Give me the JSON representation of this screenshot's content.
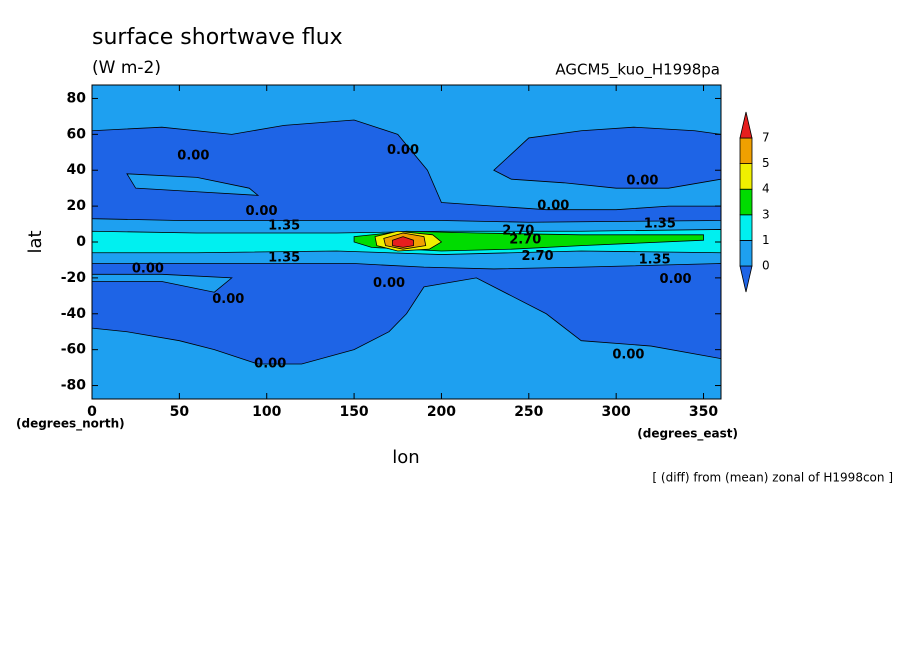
{
  "chart_data": {
    "type": "contour",
    "title": "surface shortwave flux",
    "subtitle": "(W m-2)",
    "model_label": "AGCM5_kuo_H1998pa",
    "x_label": "lon",
    "y_label": "lat",
    "x_unit": "(degrees_east)",
    "y_unit": "(degrees_north)",
    "note": "[ (diff) from (mean) zonal of H1998con ]",
    "xlim": [
      0,
      360
    ],
    "ylim": [
      -87.5,
      87.5
    ],
    "xticks": [
      0,
      50,
      100,
      150,
      200,
      250,
      300,
      350
    ],
    "yticks": [
      -80,
      -60,
      -40,
      -20,
      0,
      20,
      40,
      60,
      80
    ],
    "levels": [
      0,
      1,
      3,
      4,
      5,
      7
    ],
    "colors": [
      "#1e64e6",
      "#1ea0f0",
      "#00f0f0",
      "#00dc00",
      "#f0f000",
      "#f0a000",
      "#e61e1e"
    ],
    "regions": [
      {
        "color": "#1e64e6",
        "lon": [
          0,
          40,
          80,
          110,
          150,
          175,
          192,
          200,
          230,
          260,
          300,
          330,
          360,
          360,
          250,
          200,
          150,
          100,
          50,
          0
        ],
        "lat": [
          62,
          64,
          60,
          65,
          68,
          60,
          40,
          22,
          20,
          18,
          18,
          20,
          20,
          12,
          11,
          12,
          12,
          12,
          12,
          13
        ]
      },
      {
        "color": "#1ea0f0",
        "lon": [
          20,
          60,
          90,
          95,
          60,
          25
        ],
        "lat": [
          38,
          36,
          30,
          26,
          28,
          30
        ]
      },
      {
        "color": "#1e64e6",
        "lon": [
          230,
          250,
          280,
          310,
          345,
          360,
          360,
          330,
          300,
          270,
          240
        ],
        "lat": [
          40,
          58,
          62,
          64,
          62,
          60,
          35,
          30,
          30,
          33,
          35
        ]
      },
      {
        "color": "#1e64e6",
        "lon": [
          0,
          50,
          100,
          150,
          190,
          230,
          280,
          360,
          360,
          320,
          280,
          260,
          240,
          220,
          190,
          180,
          170,
          150,
          120,
          95,
          70,
          50,
          20,
          0
        ],
        "lat": [
          -12,
          -12,
          -12,
          -12,
          -14,
          -15,
          -14,
          -12,
          -65,
          -58,
          -55,
          -40,
          -30,
          -20,
          -25,
          -40,
          -50,
          -60,
          -68,
          -68,
          -60,
          -55,
          -50,
          -48
        ]
      },
      {
        "color": "#1ea0f0",
        "lon": [
          0,
          40,
          70,
          80,
          40,
          0
        ],
        "lat": [
          -22,
          -22,
          -28,
          -20,
          -18,
          -18
        ]
      },
      {
        "color": "#00f0f0",
        "lon": [
          0,
          60,
          140,
          200,
          280,
          360,
          360,
          280,
          200,
          140,
          60,
          0
        ],
        "lat": [
          6,
          5,
          5,
          6,
          6,
          7,
          -6,
          -5,
          -7,
          -5,
          -6,
          -6
        ]
      },
      {
        "color": "#00dc00",
        "lon": [
          150,
          180,
          220,
          280,
          350,
          350,
          280,
          240,
          200,
          160,
          150
        ],
        "lat": [
          3,
          6,
          5,
          4,
          4,
          1,
          -2,
          -4,
          -5,
          -3,
          0
        ]
      },
      {
        "color": "#f0f000",
        "lon": [
          162,
          175,
          195,
          200,
          193,
          175,
          163
        ],
        "lat": [
          3,
          6,
          4,
          0,
          -4,
          -5,
          -2
        ]
      },
      {
        "color": "#f0a000",
        "lon": [
          167,
          178,
          190,
          191,
          178,
          168
        ],
        "lat": [
          2,
          5,
          3,
          -2,
          -4,
          -2
        ]
      },
      {
        "color": "#e61e1e",
        "lon": [
          172,
          178,
          184,
          184,
          178,
          172
        ],
        "lat": [
          1,
          3,
          1,
          -2,
          -3,
          -2
        ]
      }
    ],
    "contour_labels": [
      {
        "value": 0,
        "label": "0.00",
        "lon": 58,
        "lat": 48
      },
      {
        "value": 0,
        "label": "0.00",
        "lon": 178,
        "lat": 51
      },
      {
        "value": 0,
        "label": "0.00",
        "lon": 315,
        "lat": 34
      },
      {
        "value": 0,
        "label": "0.00",
        "lon": 264,
        "lat": 20
      },
      {
        "value": 0,
        "label": "0.00",
        "lon": 97,
        "lat": 17
      },
      {
        "value": 1.35,
        "label": "1.35",
        "lon": 110,
        "lat": 9
      },
      {
        "value": 2.7,
        "label": "2.70",
        "lon": 244,
        "lat": 6
      },
      {
        "value": 2.7,
        "label": "2.70",
        "lon": 248,
        "lat": 1
      },
      {
        "value": 1.35,
        "label": "1.35",
        "lon": 325,
        "lat": 10
      },
      {
        "value": 1.35,
        "label": "1.35",
        "lon": 110,
        "lat": -9
      },
      {
        "value": 2.7,
        "label": "2.70",
        "lon": 255,
        "lat": -8
      },
      {
        "value": 1.35,
        "label": "1.35",
        "lon": 322,
        "lat": -10
      },
      {
        "value": 0,
        "label": "0.00",
        "lon": 32,
        "lat": -15
      },
      {
        "value": 0,
        "label": "0.00",
        "lon": 170,
        "lat": -23
      },
      {
        "value": 0,
        "label": "0.00",
        "lon": 334,
        "lat": -21
      },
      {
        "value": 0,
        "label": "0.00",
        "lon": 78,
        "lat": -32
      },
      {
        "value": 0,
        "label": "0.00",
        "lon": 102,
        "lat": -68
      },
      {
        "value": 0,
        "label": "0.00",
        "lon": 307,
        "lat": -63
      }
    ]
  }
}
